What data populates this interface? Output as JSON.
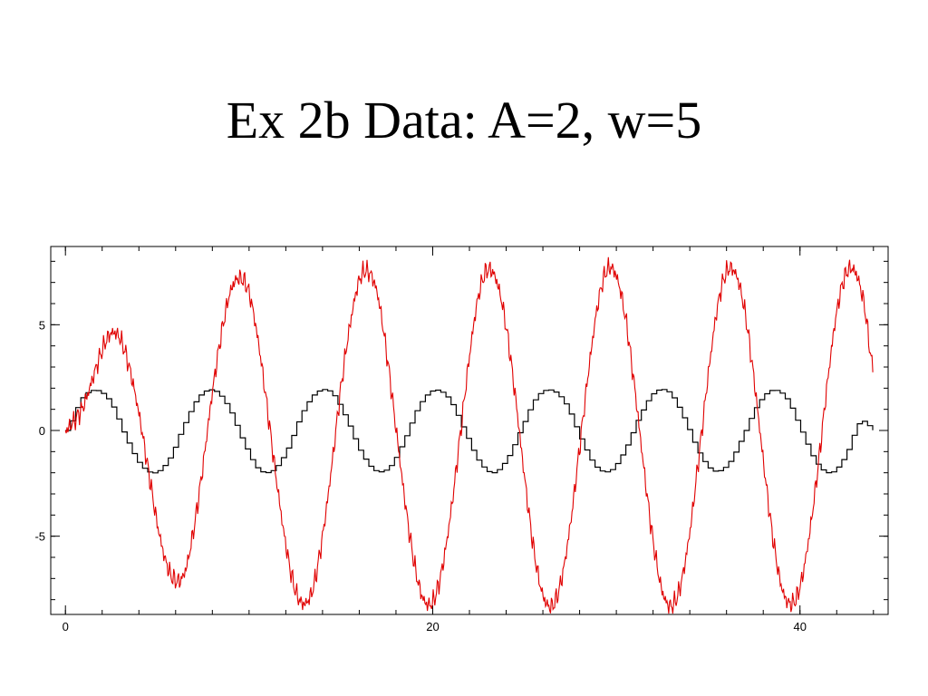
{
  "slide": {
    "title": "Ex 2b Data: A=2, w=5"
  },
  "colors": {
    "signal": "#e00000",
    "reference": "#000000",
    "axes": "#000000"
  },
  "chart_data": {
    "type": "line",
    "title": "",
    "xlabel": "",
    "ylabel": "",
    "xlim": [
      -0.8,
      44.8
    ],
    "ylim": [
      -8.7,
      8.7
    ],
    "grid": false,
    "legend": "none",
    "x_ticks": [
      {
        "value": 0,
        "label": "0"
      },
      {
        "value": 20,
        "label": "20"
      },
      {
        "value": 40,
        "label": "40"
      }
    ],
    "y_ticks": [
      {
        "value": -5,
        "label": "-5"
      },
      {
        "value": 0,
        "label": "0"
      },
      {
        "value": 5,
        "label": "5"
      }
    ],
    "x_minor_step": 2,
    "y_minor_step": 1,
    "series": [
      {
        "color_key": "reference",
        "style": "stepped",
        "x": [
          0,
          0.8,
          1.6,
          2.4,
          3.2,
          4.0,
          4.8,
          5.6,
          6.4,
          7.2,
          8.0,
          8.8,
          9.6,
          10.4,
          11.2,
          12.0,
          12.8,
          13.6,
          14.4,
          15.2,
          16.0,
          16.8,
          17.6,
          18.4,
          19.2,
          20.0,
          20.8,
          21.6,
          22.4,
          23.2,
          24.0,
          24.8,
          25.6,
          26.4,
          27.2,
          28.0,
          28.8,
          29.6,
          30.4,
          31.2,
          32.0,
          32.8,
          33.6,
          34.4,
          35.2,
          36.0,
          36.8,
          37.6,
          38.4,
          39.2,
          40.0,
          40.8,
          41.6,
          42.4,
          43.2,
          44.0
        ],
        "y": [
          0.0,
          1.5,
          1.9,
          1.3,
          -0.3,
          -1.6,
          -2.0,
          -1.3,
          0.3,
          1.6,
          1.9,
          1.1,
          -0.5,
          -1.8,
          -1.9,
          -0.9,
          0.8,
          1.8,
          1.8,
          0.6,
          -1.0,
          -1.9,
          -1.7,
          -0.4,
          1.2,
          1.9,
          1.5,
          0.1,
          -1.4,
          -2.0,
          -1.3,
          0.2,
          1.6,
          1.9,
          1.2,
          -0.4,
          -1.7,
          -1.9,
          -0.9,
          0.7,
          1.8,
          1.8,
          0.6,
          -1.0,
          -1.9,
          -1.6,
          -0.3,
          1.2,
          1.9,
          1.5,
          0.0,
          -1.5,
          -2.0,
          -1.2,
          0.4,
          0.0
        ]
      },
      {
        "color_key": "signal",
        "style": "noisy",
        "x": [
          0,
          0.5,
          1.0,
          1.5,
          2.0,
          2.5,
          3.0,
          3.5,
          4.0,
          4.5,
          5.0,
          5.5,
          6.0,
          6.5,
          7.0,
          7.5,
          8.0,
          8.5,
          9.0,
          9.5,
          10.0,
          10.5,
          11.0,
          11.5,
          12.0,
          12.5,
          13.0,
          13.5,
          14.0,
          14.5,
          15.0,
          15.5,
          16.0,
          16.5,
          17.0,
          17.5,
          18.0,
          18.5,
          19.0,
          19.5,
          20.0,
          20.5,
          21.0,
          21.5,
          22.0,
          22.5,
          23.0,
          23.5,
          24.0,
          24.5,
          25.0,
          25.5,
          26.0,
          26.5,
          27.0,
          27.5,
          28.0,
          28.5,
          29.0,
          29.5,
          30.0,
          30.5,
          31.0,
          31.5,
          32.0,
          32.5,
          33.0,
          33.5,
          34.0,
          34.5,
          35.0,
          35.5,
          36.0,
          36.5,
          37.0,
          37.5,
          38.0,
          38.5,
          39.0,
          39.5,
          40.0,
          40.5,
          41.0,
          41.5,
          42.0,
          42.5,
          43.0,
          43.5,
          44.0
        ],
        "y": [
          0.0,
          0.5,
          1.2,
          2.5,
          3.8,
          4.6,
          4.3,
          2.9,
          0.8,
          -1.8,
          -4.4,
          -6.3,
          -7.1,
          -6.7,
          -4.6,
          -1.6,
          1.8,
          4.6,
          6.6,
          7.2,
          6.5,
          4.2,
          1.0,
          -2.4,
          -5.4,
          -7.5,
          -8.2,
          -7.4,
          -5.0,
          -1.7,
          2.0,
          5.0,
          7.1,
          7.5,
          6.4,
          3.6,
          0.1,
          -3.4,
          -6.3,
          -8.0,
          -8.1,
          -6.6,
          -3.8,
          -0.2,
          3.5,
          6.4,
          7.6,
          7.0,
          4.9,
          1.6,
          -2.2,
          -5.6,
          -7.8,
          -8.3,
          -7.1,
          -4.4,
          -0.8,
          2.9,
          6.0,
          7.6,
          7.3,
          5.3,
          2.0,
          -1.8,
          -5.2,
          -7.6,
          -8.3,
          -7.3,
          -4.8,
          -1.2,
          2.6,
          5.8,
          7.5,
          7.4,
          5.6,
          2.4,
          -1.4,
          -4.9,
          -7.4,
          -8.2,
          -7.4,
          -5.0,
          -1.6,
          2.3,
          5.6,
          7.4,
          7.5,
          5.9,
          2.8
        ]
      }
    ]
  }
}
